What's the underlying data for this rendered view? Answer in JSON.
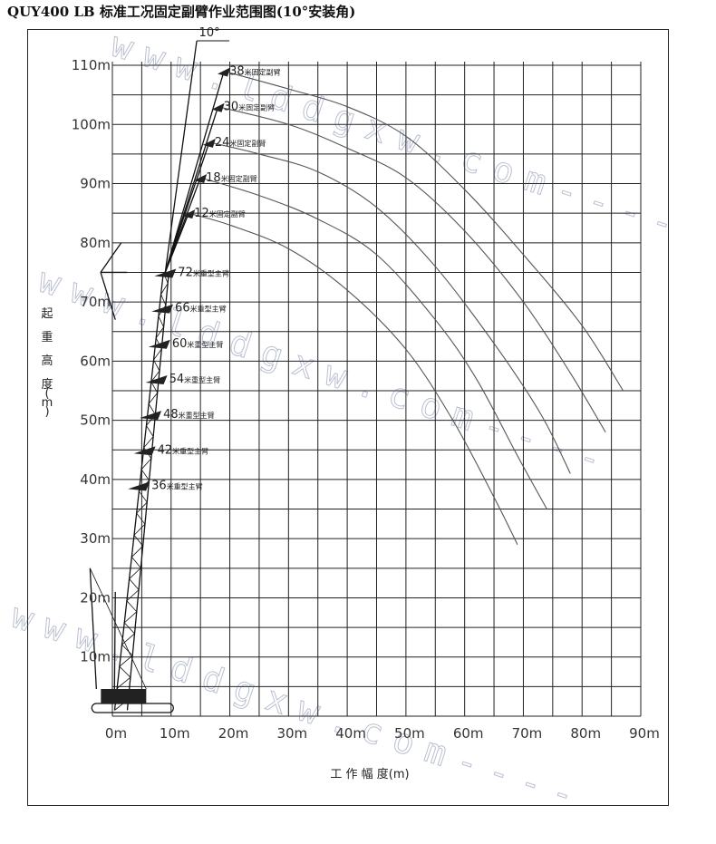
{
  "title": "QUY400 LB 标准工况固定副臂作业范围图(10°安装角)",
  "watermark": "www.lddgxw.com----",
  "colors": {
    "grid": "#222222",
    "curve": "#555555",
    "boom": "#111111",
    "watermark": "#3a4a7a"
  },
  "chart_data": {
    "type": "line",
    "title": "QUY400 LB 标准工况固定副臂作业范围图(10°安装角)",
    "xlabel": "工 作 幅 度(m)",
    "ylabel": "起重高度(m)",
    "xlim": [
      0,
      90
    ],
    "ylim": [
      0,
      110
    ],
    "grid": true,
    "x_ticks": [
      "0m",
      "10m",
      "20m",
      "30m",
      "40m",
      "50m",
      "60m",
      "70m",
      "80m",
      "90m"
    ],
    "y_ticks": [
      "10m",
      "20m",
      "30m",
      "40m",
      "50m",
      "60m",
      "70m",
      "80m",
      "90m",
      "100m",
      "110m"
    ],
    "offset_angle": "10°",
    "main_booms": [
      {
        "label": "72",
        "unit": "米重型主臂",
        "tip": [
          9,
          75
        ]
      },
      {
        "label": "66",
        "unit": "米重型主臂",
        "tip": [
          8.5,
          69
        ]
      },
      {
        "label": "60",
        "unit": "米重型主臂",
        "tip": [
          8,
          63
        ]
      },
      {
        "label": "54",
        "unit": "米重型主臂",
        "tip": [
          7.5,
          57
        ]
      },
      {
        "label": "48",
        "unit": "米重型主臂",
        "tip": [
          6.5,
          51
        ]
      },
      {
        "label": "42",
        "unit": "米重型主臂",
        "tip": [
          5.5,
          45
        ]
      },
      {
        "label": "36",
        "unit": "米重型主臂",
        "tip": [
          4.5,
          39
        ]
      }
    ],
    "series": [
      {
        "name": "38",
        "unit": "米固定副臂",
        "tip": [
          19,
          109
        ],
        "points": [
          [
            19,
            109
          ],
          [
            30,
            106
          ],
          [
            40,
            103
          ],
          [
            50,
            98
          ],
          [
            60,
            89
          ],
          [
            70,
            78
          ],
          [
            80,
            66
          ],
          [
            87,
            55
          ]
        ]
      },
      {
        "name": "30",
        "unit": "米固定副臂",
        "tip": [
          18,
          103
        ],
        "points": [
          [
            18,
            103
          ],
          [
            30,
            100
          ],
          [
            40,
            96
          ],
          [
            50,
            91
          ],
          [
            60,
            82
          ],
          [
            70,
            70
          ],
          [
            78,
            58
          ],
          [
            84,
            48
          ]
        ]
      },
      {
        "name": "24",
        "unit": "米固定副臂",
        "tip": [
          16.5,
          97
        ],
        "points": [
          [
            16.5,
            97
          ],
          [
            25,
            95
          ],
          [
            35,
            92
          ],
          [
            45,
            86
          ],
          [
            55,
            76
          ],
          [
            65,
            63
          ],
          [
            73,
            51
          ],
          [
            78,
            41
          ]
        ]
      },
      {
        "name": "18",
        "unit": "米固定副臂",
        "tip": [
          15,
          91
        ],
        "points": [
          [
            15,
            91
          ],
          [
            25,
            88
          ],
          [
            35,
            84
          ],
          [
            45,
            78
          ],
          [
            55,
            67
          ],
          [
            62,
            57
          ],
          [
            69,
            44
          ],
          [
            74,
            35
          ]
        ]
      },
      {
        "name": "12",
        "unit": "米固定副臂",
        "tip": [
          13,
          85
        ],
        "points": [
          [
            13,
            85
          ],
          [
            20,
            83
          ],
          [
            30,
            79
          ],
          [
            40,
            72
          ],
          [
            50,
            62
          ],
          [
            58,
            50
          ],
          [
            65,
            37
          ],
          [
            69,
            29
          ]
        ]
      }
    ]
  }
}
